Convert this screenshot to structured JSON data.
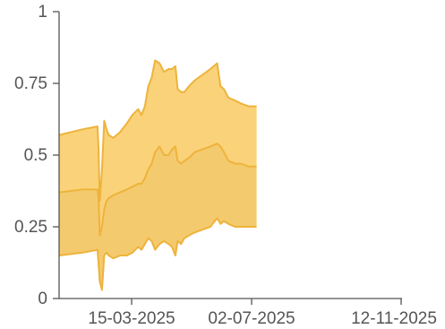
{
  "chart_data": {
    "type": "area",
    "title": "",
    "xlabel": "",
    "ylabel": "",
    "xlim": [
      "2025-01-25",
      "2025-11-24"
    ],
    "ylim": [
      0,
      1
    ],
    "x_ticks": [
      "15-03-2025",
      "02-07-2025",
      "12-11-2025"
    ],
    "y_ticks": [
      "0",
      "0.25",
      "0.5",
      "0.75",
      "1"
    ],
    "grid": false,
    "legend": "none",
    "colors": {
      "outer_band": "#f9cd6a",
      "inner_band": "#f3c45e",
      "stroke": "#eeb33c"
    },
    "x": [
      "2025-01-25",
      "2025-02-15",
      "2025-02-28",
      "2025-03-01",
      "2025-03-02",
      "2025-03-04",
      "2025-03-06",
      "2025-03-08",
      "2025-03-10",
      "2025-03-14",
      "2025-03-20",
      "2025-03-26",
      "2025-03-31",
      "2025-04-05",
      "2025-04-08",
      "2025-04-11",
      "2025-04-14",
      "2025-04-17",
      "2025-04-20",
      "2025-04-24",
      "2025-04-28",
      "2025-05-02",
      "2025-05-05",
      "2025-05-08",
      "2025-05-10",
      "2025-05-13",
      "2025-05-16",
      "2025-05-20",
      "2025-05-25",
      "2025-06-01",
      "2025-06-08",
      "2025-06-14",
      "2025-06-17",
      "2025-06-20",
      "2025-06-24",
      "2025-06-30",
      "2025-07-05",
      "2025-07-12",
      "2025-07-19"
    ],
    "series": [
      {
        "values": [
          0.57,
          0.59,
          0.6,
          0.52,
          0.34,
          0.45,
          0.62,
          0.59,
          0.57,
          0.56,
          0.58,
          0.61,
          0.64,
          0.66,
          0.64,
          0.67,
          0.74,
          0.77,
          0.83,
          0.82,
          0.79,
          0.8,
          0.8,
          0.81,
          0.73,
          0.72,
          0.72,
          0.74,
          0.76,
          0.78,
          0.8,
          0.82,
          0.74,
          0.73,
          0.7,
          0.69,
          0.68,
          0.67,
          0.67
        ]
      },
      {
        "values": [
          0.37,
          0.38,
          0.38,
          0.35,
          0.22,
          0.25,
          0.31,
          0.34,
          0.35,
          0.36,
          0.37,
          0.38,
          0.39,
          0.4,
          0.4,
          0.42,
          0.45,
          0.47,
          0.51,
          0.53,
          0.5,
          0.5,
          0.52,
          0.53,
          0.48,
          0.47,
          0.48,
          0.49,
          0.51,
          0.52,
          0.53,
          0.54,
          0.53,
          0.51,
          0.48,
          0.47,
          0.47,
          0.46,
          0.46
        ]
      },
      {
        "values": [
          0.15,
          0.16,
          0.17,
          0.12,
          0.06,
          0.03,
          0.15,
          0.16,
          0.15,
          0.14,
          0.15,
          0.15,
          0.16,
          0.18,
          0.17,
          0.19,
          0.21,
          0.2,
          0.17,
          0.19,
          0.2,
          0.19,
          0.18,
          0.15,
          0.2,
          0.19,
          0.21,
          0.22,
          0.23,
          0.24,
          0.25,
          0.28,
          0.26,
          0.27,
          0.26,
          0.25,
          0.25,
          0.25,
          0.25
        ]
      }
    ]
  }
}
